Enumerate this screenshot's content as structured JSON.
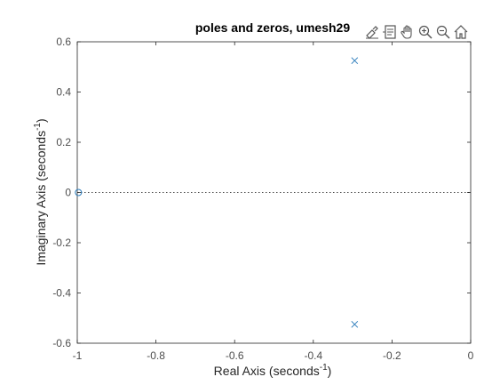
{
  "chart_data": {
    "type": "scatter",
    "title": "poles and zeros, umesh29",
    "xlabel": "Real  Axis  (seconds",
    "xlabel_sup": "-1",
    "xlabel_end": ")",
    "ylabel": "Imaginary  Axis  (seconds",
    "ylabel_sup": "-1",
    "ylabel_end": ")",
    "xlim": [
      -1,
      0
    ],
    "ylim": [
      -0.6,
      0.6
    ],
    "xticks": [
      "-1",
      "-0.8",
      "-0.6",
      "-0.4",
      "-0.2",
      "0"
    ],
    "xtick_values": [
      -1,
      -0.8,
      -0.6,
      -0.4,
      -0.2,
      0
    ],
    "yticks": [
      "0.6",
      "0.4",
      "0.2",
      "0",
      "-0.2",
      "-0.4",
      "-0.6"
    ],
    "ytick_values": [
      0.6,
      0.4,
      0.2,
      0,
      -0.2,
      -0.4,
      -0.6
    ],
    "grid": false,
    "zero_line": true,
    "series": [
      {
        "marker": "x",
        "points": [
          {
            "x": -0.295,
            "y": 0.525
          },
          {
            "x": -0.295,
            "y": -0.525
          }
        ]
      },
      {
        "marker": "o",
        "points": [
          {
            "x": -0.997,
            "y": 0
          }
        ]
      }
    ],
    "marker_color": "#2f7ebc",
    "axis_color": "#262626",
    "tick_label_color": "#4d4d4d"
  },
  "toolbar": {
    "icons": [
      "brush-icon",
      "datatip-icon",
      "pan-icon",
      "zoom-in-icon",
      "zoom-out-icon",
      "home-icon"
    ]
  }
}
